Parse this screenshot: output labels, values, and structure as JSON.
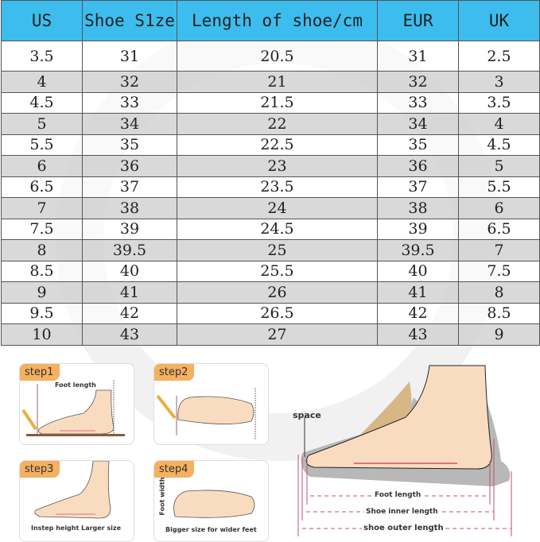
{
  "table": {
    "headers": [
      "US",
      "Shoe S1ze",
      "Length of shoe/cm",
      "EUR",
      "UK"
    ],
    "rows": [
      [
        "3.5",
        "31",
        "20.5",
        "31",
        "2.5"
      ],
      [
        "4",
        "32",
        "21",
        "32",
        "3"
      ],
      [
        "4.5",
        "33",
        "21.5",
        "33",
        "3.5"
      ],
      [
        "5",
        "34",
        "22",
        "34",
        "4"
      ],
      [
        "5.5",
        "35",
        "22.5",
        "35",
        "4.5"
      ],
      [
        "6",
        "36",
        "23",
        "36",
        "5"
      ],
      [
        "6.5",
        "37",
        "23.5",
        "37",
        "5.5"
      ],
      [
        "7",
        "38",
        "24",
        "38",
        "6"
      ],
      [
        "7.5",
        "39",
        "24.5",
        "39",
        "6.5"
      ],
      [
        "8",
        "39.5",
        "25",
        "39.5",
        "7"
      ],
      [
        "8.5",
        "40",
        "25.5",
        "40",
        "7.5"
      ],
      [
        "9",
        "41",
        "26",
        "41",
        "8"
      ],
      [
        "9.5",
        "42",
        "26.5",
        "42",
        "8.5"
      ],
      [
        "10",
        "43",
        "27",
        "43",
        "9"
      ]
    ],
    "header_color": "#3cbdee",
    "alt_row_color": "#d9d9d9"
  },
  "steps": [
    {
      "tag": "step1",
      "label": "Foot length"
    },
    {
      "tag": "step2"
    },
    {
      "tag": "step3",
      "caption": "Instep height Larger size"
    },
    {
      "tag": "step4",
      "side_label": "Foot width",
      "caption": "Bigger size for wider feet"
    }
  ],
  "diagram": {
    "space_label": "space",
    "foot_length": "Foot length",
    "inner_length": "Shoe inner length",
    "outer_length": "shoe outer length"
  },
  "colors": {
    "tag": "#f5b060",
    "skin": "#f9dcc0",
    "measure": "#c0506a"
  }
}
